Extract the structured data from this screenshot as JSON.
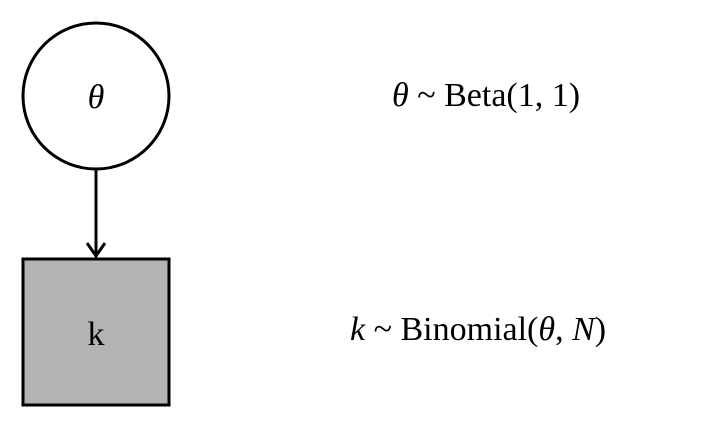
{
  "nodes": {
    "theta": {
      "label": "θ",
      "shape": "circle",
      "fill": "#ffffff"
    },
    "k": {
      "label": "k",
      "shape": "square",
      "fill": "#b3b3b3",
      "observed": true
    }
  },
  "edges": [
    {
      "from": "theta",
      "to": "k"
    }
  ],
  "equations": {
    "theta": {
      "variable": "θ",
      "tilde": " ~ ",
      "distribution": "Beta(1, 1)"
    },
    "k": {
      "variable": "k",
      "tilde": " ~ ",
      "dist_name": "Binomial(",
      "param1": "θ",
      "comma": ", ",
      "param2": "N",
      "close": ")"
    }
  },
  "colors": {
    "stroke": "#000000",
    "observed_fill": "#b3b3b3",
    "background": "#ffffff"
  }
}
